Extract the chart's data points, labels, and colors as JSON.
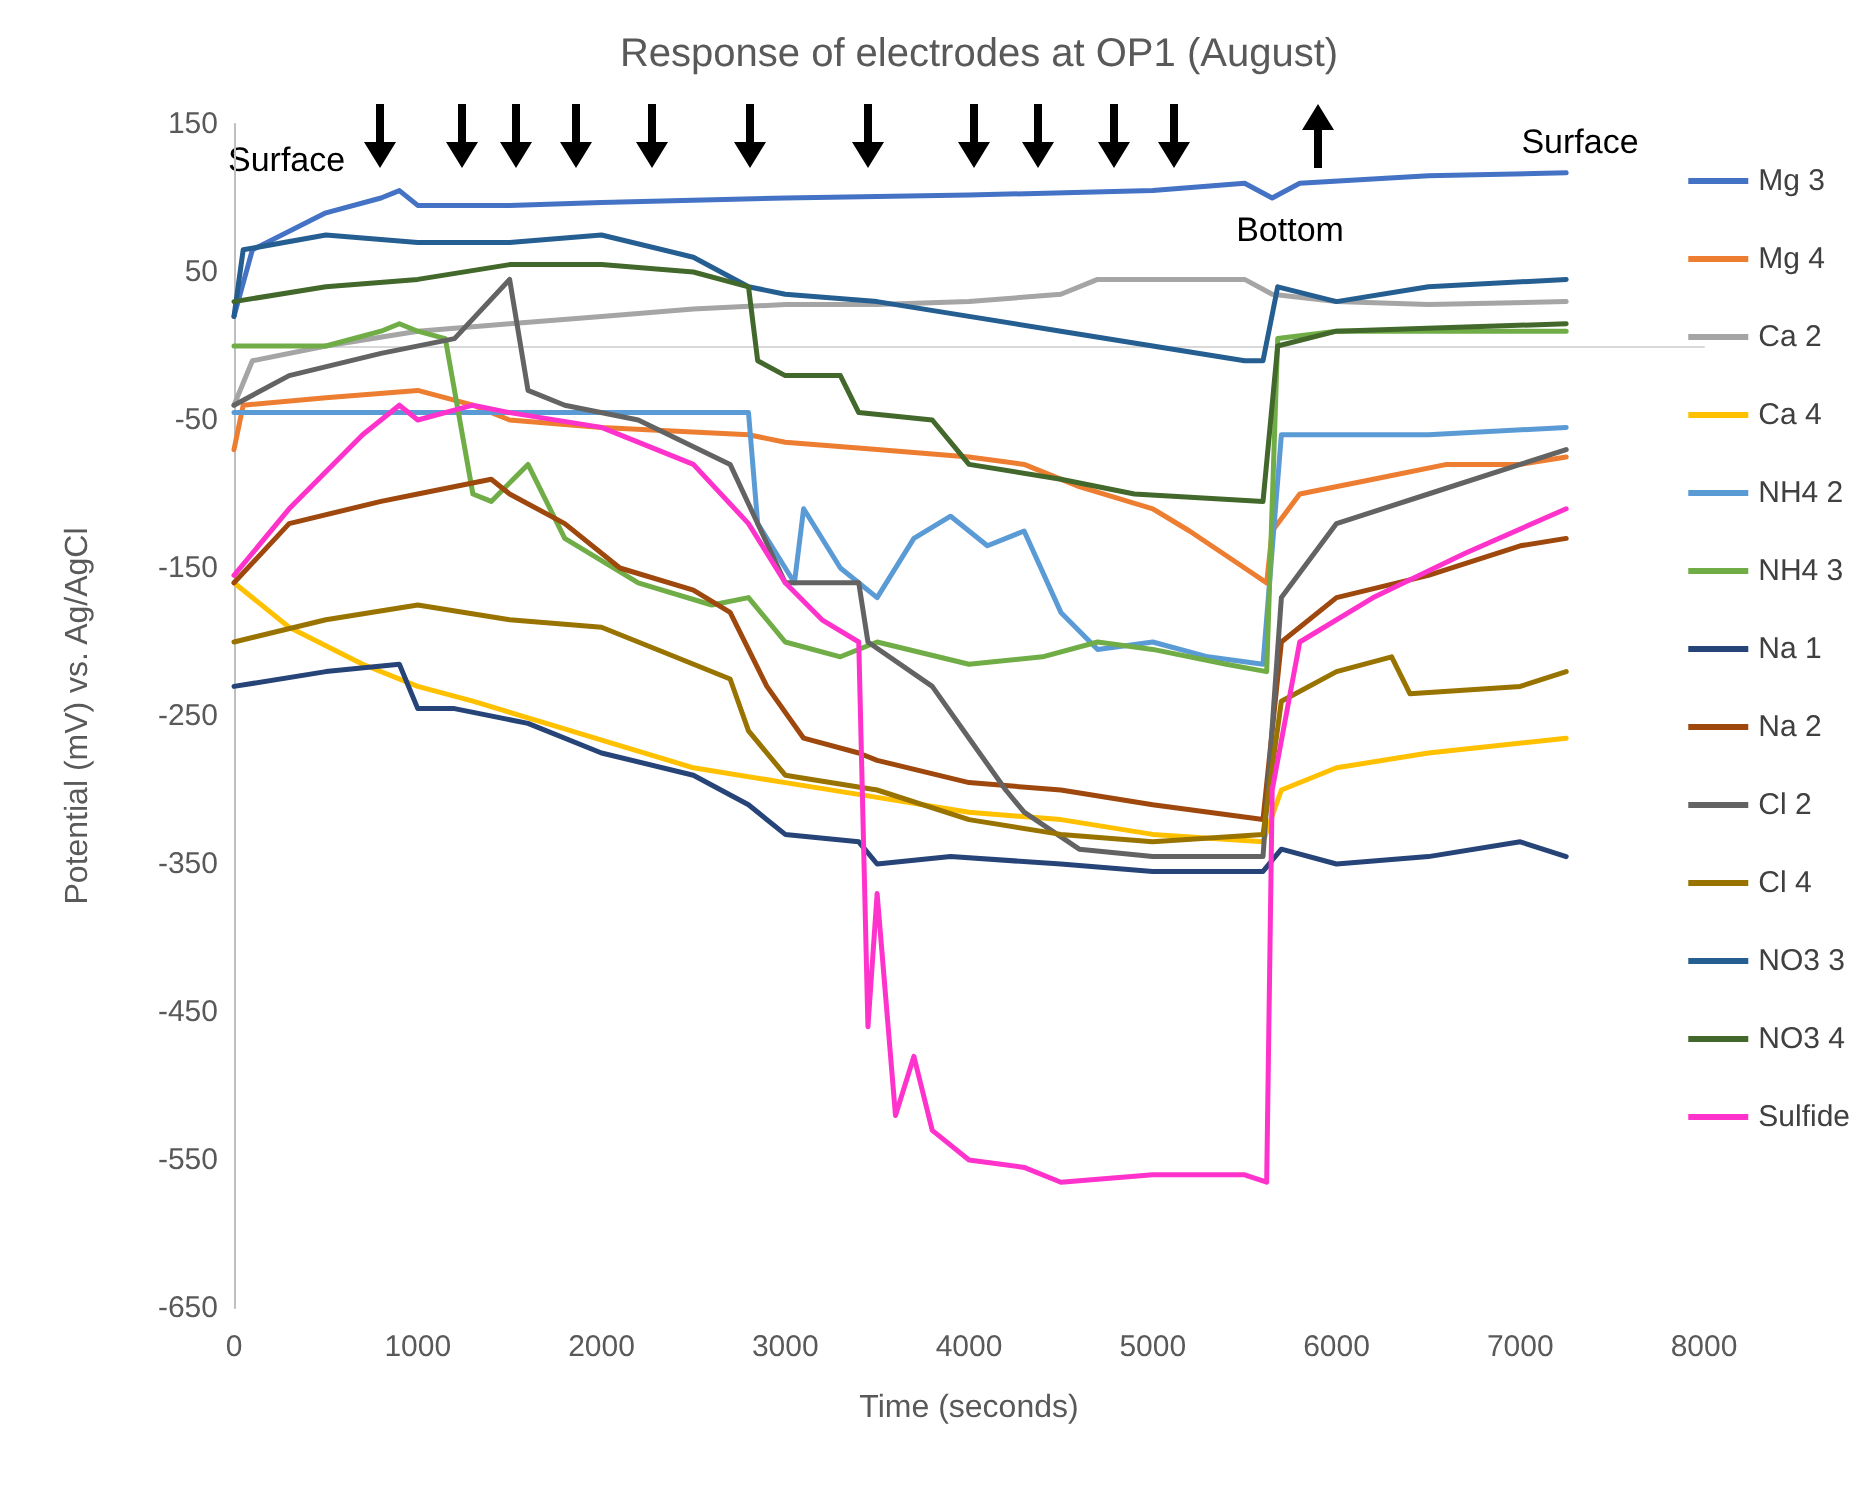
{
  "chart_data": {
    "type": "line",
    "title": "Response of electrodes at OP1 (August)",
    "xlabel": "Time (seconds)",
    "ylabel": "Potential (mV) vs. Ag/AgCl",
    "xlim": [
      0,
      8000
    ],
    "xticks": [
      0,
      1000,
      2000,
      3000,
      4000,
      5000,
      6000,
      7000,
      8000
    ],
    "ylim": [
      -650,
      150
    ],
    "yticks": [
      -650,
      -550,
      -450,
      -350,
      -250,
      -150,
      -50,
      50,
      150
    ],
    "grid": false,
    "legend": "right",
    "marker": "none",
    "line_style": "solid",
    "annotations": [
      "Surface",
      "Bottom",
      "Surface"
    ],
    "series": [
      {
        "name": "Mg 3",
        "color": "#4472c4",
        "x": [
          0,
          100,
          500,
          800,
          900,
          1000,
          1500,
          2000,
          3000,
          4000,
          5000,
          5500,
          5650,
          5800,
          6500,
          7250
        ],
        "values": [
          20,
          65,
          90,
          100,
          105,
          95,
          95,
          97,
          100,
          102,
          105,
          110,
          100,
          110,
          115,
          117
        ]
      },
      {
        "name": "Mg 4",
        "color": "#ed7d31",
        "x": [
          0,
          50,
          500,
          1000,
          1300,
          1500,
          2000,
          2800,
          3000,
          3500,
          4000,
          4300,
          4600,
          5000,
          5200,
          5500,
          5620,
          5650,
          5800,
          6200,
          6600,
          7000,
          7250
        ],
        "values": [
          -70,
          -40,
          -35,
          -30,
          -40,
          -50,
          -55,
          -60,
          -65,
          -70,
          -75,
          -80,
          -95,
          -110,
          -125,
          -150,
          -160,
          -125,
          -100,
          -90,
          -80,
          -80,
          -75
        ]
      },
      {
        "name": "Ca 2",
        "color": "#a5a5a5",
        "x": [
          0,
          100,
          500,
          1000,
          1500,
          2000,
          2500,
          3000,
          3500,
          4000,
          4500,
          4700,
          5500,
          5650,
          6000,
          6500,
          7250
        ],
        "values": [
          -40,
          -10,
          0,
          10,
          15,
          20,
          25,
          28,
          28,
          30,
          35,
          45,
          45,
          35,
          30,
          28,
          30
        ]
      },
      {
        "name": "Ca 4",
        "color": "#ffc000",
        "x": [
          0,
          300,
          700,
          1000,
          1300,
          1700,
          2100,
          2500,
          3000,
          3500,
          4000,
          4500,
          5000,
          5600,
          5700,
          6000,
          6500,
          7250
        ],
        "values": [
          -160,
          -190,
          -215,
          -230,
          -240,
          -255,
          -270,
          -285,
          -295,
          -305,
          -315,
          -320,
          -330,
          -335,
          -300,
          -285,
          -275,
          -265
        ]
      },
      {
        "name": "NH4 2",
        "color": "#5b9bd5",
        "x": [
          0,
          1000,
          1500,
          2000,
          2800,
          2850,
          3000,
          3050,
          3100,
          3300,
          3500,
          3700,
          3900,
          4100,
          4300,
          4500,
          4700,
          5000,
          5300,
          5600,
          5700,
          6500,
          7250
        ],
        "values": [
          -45,
          -45,
          -45,
          -45,
          -45,
          -120,
          -150,
          -160,
          -110,
          -150,
          -170,
          -130,
          -115,
          -135,
          -125,
          -180,
          -205,
          -200,
          -210,
          -215,
          -60,
          -60,
          -55
        ]
      },
      {
        "name": "NH4 3",
        "color": "#70ad47",
        "x": [
          0,
          500,
          800,
          900,
          1000,
          1150,
          1300,
          1400,
          1600,
          1800,
          2200,
          2600,
          2800,
          3000,
          3300,
          3500,
          4000,
          4400,
          4700,
          5000,
          5400,
          5620,
          5680,
          6000,
          7250
        ],
        "values": [
          0,
          0,
          10,
          15,
          10,
          5,
          -100,
          -105,
          -80,
          -130,
          -160,
          -175,
          -170,
          -200,
          -210,
          -200,
          -215,
          -210,
          -200,
          -205,
          -215,
          -220,
          5,
          10,
          10
        ]
      },
      {
        "name": "Na 1",
        "color": "#264478",
        "x": [
          0,
          500,
          900,
          1000,
          1200,
          1600,
          2000,
          2500,
          2800,
          3000,
          3400,
          3500,
          3900,
          4500,
          5000,
          5600,
          5700,
          6000,
          6500,
          7000,
          7250
        ],
        "values": [
          -230,
          -220,
          -215,
          -245,
          -245,
          -255,
          -275,
          -290,
          -310,
          -330,
          -335,
          -350,
          -345,
          -350,
          -355,
          -355,
          -340,
          -350,
          -345,
          -335,
          -345
        ]
      },
      {
        "name": "Na 2",
        "color": "#9e480e",
        "x": [
          0,
          300,
          800,
          1000,
          1400,
          1500,
          1800,
          2100,
          2500,
          2700,
          2900,
          3100,
          3400,
          3500,
          4000,
          4500,
          5000,
          5600,
          5700,
          6000,
          6500,
          7000,
          7250
        ],
        "values": [
          -160,
          -120,
          -105,
          -100,
          -90,
          -100,
          -120,
          -150,
          -165,
          -180,
          -230,
          -265,
          -275,
          -280,
          -295,
          -300,
          -310,
          -320,
          -200,
          -170,
          -155,
          -135,
          -130
        ]
      },
      {
        "name": "Cl 2",
        "color": "#636363",
        "x": [
          0,
          300,
          800,
          1200,
          1500,
          1600,
          1800,
          2200,
          2700,
          3000,
          3400,
          3450,
          3800,
          4000,
          4200,
          4300,
          4600,
          5000,
          5600,
          5700,
          6000,
          6500,
          7000,
          7250
        ],
        "values": [
          -40,
          -20,
          -5,
          5,
          45,
          -30,
          -40,
          -50,
          -80,
          -160,
          -160,
          -200,
          -230,
          -265,
          -300,
          -315,
          -340,
          -345,
          -345,
          -170,
          -120,
          -100,
          -80,
          -70
        ]
      },
      {
        "name": "Cl 4",
        "color": "#997300",
        "x": [
          0,
          500,
          1000,
          1500,
          2000,
          2400,
          2700,
          2800,
          3000,
          3500,
          4000,
          4500,
          5000,
          5600,
          5700,
          6000,
          6300,
          6400,
          7000,
          7250
        ],
        "values": [
          -200,
          -185,
          -175,
          -185,
          -190,
          -210,
          -225,
          -260,
          -290,
          -300,
          -320,
          -330,
          -335,
          -330,
          -240,
          -220,
          -210,
          -235,
          -230,
          -220
        ]
      },
      {
        "name": "NO3 3",
        "color": "#255e91",
        "x": [
          0,
          50,
          500,
          1000,
          1500,
          2000,
          2500,
          2800,
          3000,
          3500,
          4000,
          4500,
          5000,
          5500,
          5600,
          5680,
          6000,
          6500,
          7250
        ],
        "values": [
          20,
          65,
          75,
          70,
          70,
          75,
          60,
          40,
          35,
          30,
          20,
          10,
          0,
          -10,
          -10,
          40,
          30,
          40,
          45
        ]
      },
      {
        "name": "NO3 4",
        "color": "#43682b",
        "x": [
          0,
          500,
          1000,
          1500,
          2000,
          2500,
          2800,
          2850,
          3000,
          3300,
          3400,
          3800,
          4000,
          4500,
          4900,
          5600,
          5680,
          6000,
          7250
        ],
        "values": [
          30,
          40,
          45,
          55,
          55,
          50,
          40,
          -10,
          -20,
          -20,
          -45,
          -50,
          -80,
          -90,
          -100,
          -105,
          0,
          10,
          15
        ]
      },
      {
        "name": "Sulfide",
        "color": "#ff33cc",
        "x": [
          0,
          300,
          700,
          900,
          1000,
          1300,
          1500,
          2000,
          2500,
          2800,
          3000,
          3200,
          3400,
          3450,
          3500,
          3600,
          3700,
          3800,
          4000,
          4300,
          4500,
          5000,
          5500,
          5620,
          5650,
          5800,
          6200,
          6700,
          7250
        ],
        "values": [
          -155,
          -110,
          -60,
          -40,
          -50,
          -40,
          -45,
          -55,
          -80,
          -120,
          -160,
          -185,
          -200,
          -460,
          -370,
          -520,
          -480,
          -530,
          -550,
          -555,
          -565,
          -560,
          -560,
          -565,
          -300,
          -200,
          -170,
          -140,
          -110
        ]
      }
    ]
  }
}
